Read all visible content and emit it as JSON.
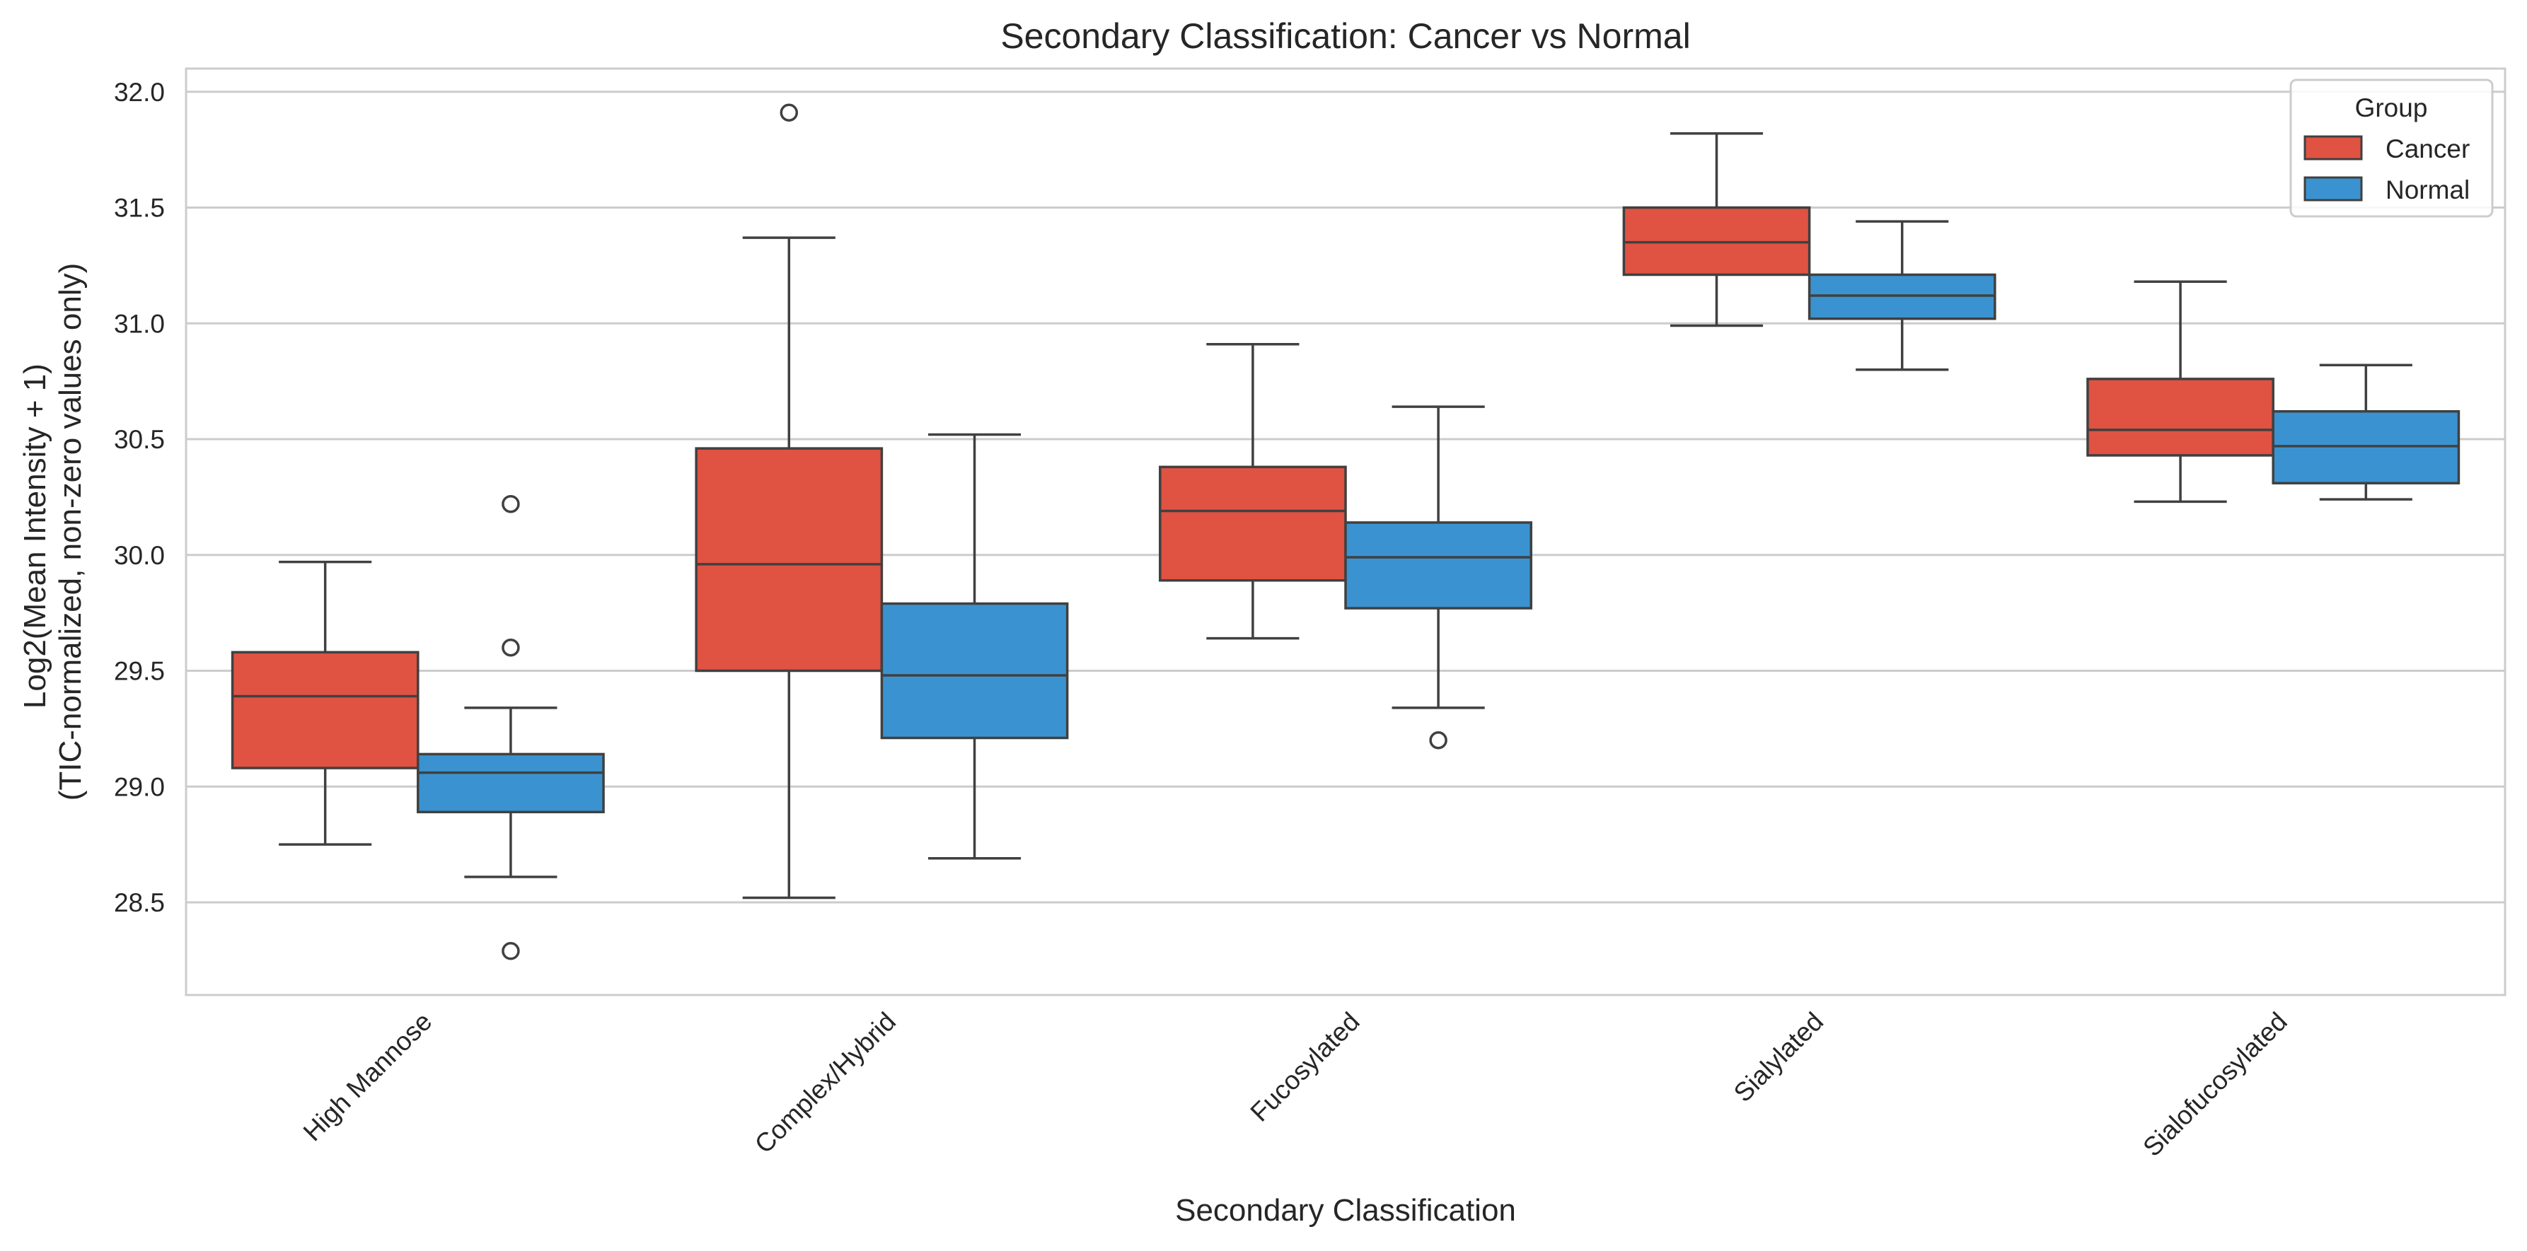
{
  "chart_data": {
    "type": "box",
    "title": "Secondary Classification: Cancer vs Normal",
    "xlabel": "Secondary Classification",
    "ylabel_line1": "Log2(Mean Intensity + 1)",
    "ylabel_line2": "(TIC-normalized, non-zero values only)",
    "ylim": [
      28.1,
      32.1
    ],
    "yticks": [
      28.5,
      29.0,
      29.5,
      30.0,
      30.5,
      31.0,
      31.5,
      32.0
    ],
    "grid": true,
    "legend": {
      "title": "Group",
      "placement": "top-right"
    },
    "categories": [
      "High Mannose",
      "Complex/Hybrid",
      "Fucosylated",
      "Sialylated",
      "Sialofucosylated"
    ],
    "series": [
      {
        "name": "Cancer",
        "color": "#e05242",
        "boxes": [
          {
            "whislo": 28.75,
            "q1": 29.08,
            "med": 29.39,
            "q3": 29.58,
            "whishi": 29.97,
            "fliers": []
          },
          {
            "whislo": 28.52,
            "q1": 29.5,
            "med": 29.96,
            "q3": 30.46,
            "whishi": 31.37,
            "fliers": [
              31.91
            ]
          },
          {
            "whislo": 29.64,
            "q1": 29.89,
            "med": 30.19,
            "q3": 30.38,
            "whishi": 30.91,
            "fliers": []
          },
          {
            "whislo": 30.99,
            "q1": 31.21,
            "med": 31.35,
            "q3": 31.5,
            "whishi": 31.82,
            "fliers": []
          },
          {
            "whislo": 30.23,
            "q1": 30.43,
            "med": 30.54,
            "q3": 30.76,
            "whishi": 31.18,
            "fliers": []
          }
        ]
      },
      {
        "name": "Normal",
        "color": "#3a93d0",
        "boxes": [
          {
            "whislo": 28.61,
            "q1": 28.89,
            "med": 29.06,
            "q3": 29.14,
            "whishi": 29.34,
            "fliers": [
              30.22,
              29.6,
              28.29
            ]
          },
          {
            "whislo": 28.69,
            "q1": 29.21,
            "med": 29.48,
            "q3": 29.79,
            "whishi": 30.52,
            "fliers": []
          },
          {
            "whislo": 29.34,
            "q1": 29.77,
            "med": 29.99,
            "q3": 30.14,
            "whishi": 30.64,
            "fliers": [
              29.2
            ]
          },
          {
            "whislo": 30.8,
            "q1": 31.02,
            "med": 31.12,
            "q3": 31.21,
            "whishi": 31.44,
            "fliers": []
          },
          {
            "whislo": 30.24,
            "q1": 30.31,
            "med": 30.47,
            "q3": 30.62,
            "whishi": 30.82,
            "fliers": []
          }
        ]
      }
    ]
  }
}
